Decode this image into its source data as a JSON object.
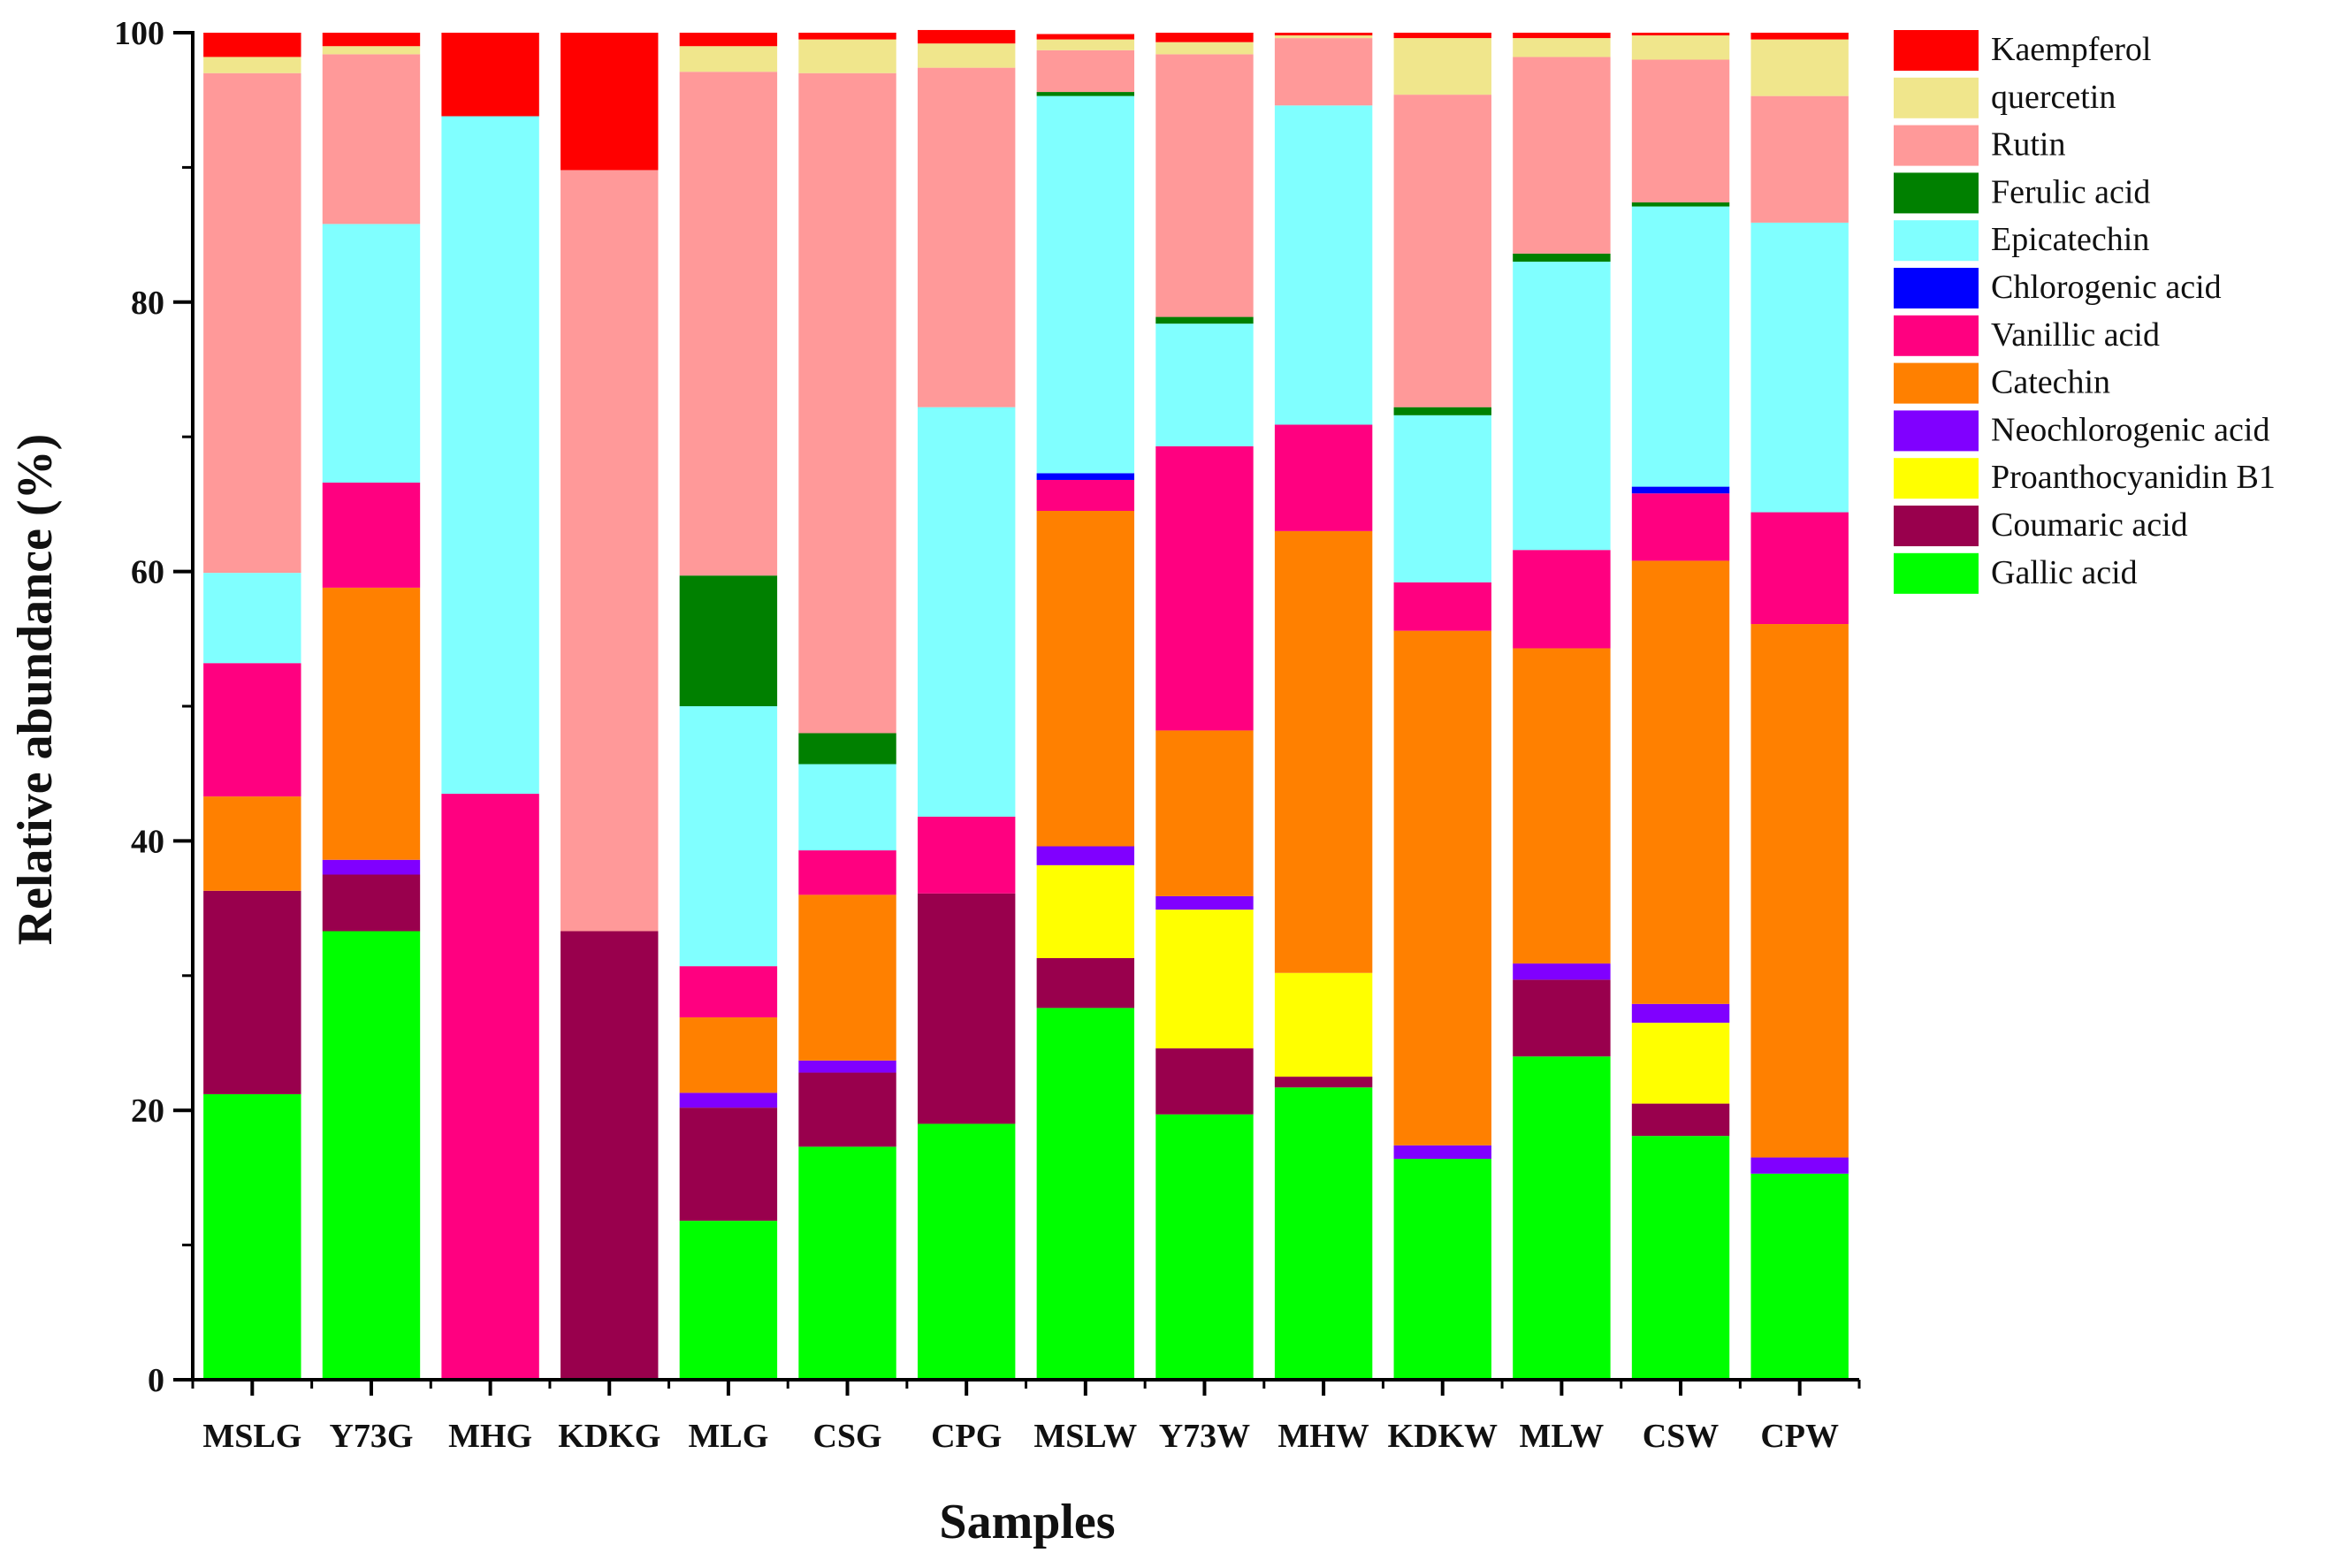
{
  "chart_data": {
    "type": "bar",
    "stacked": true,
    "title": "",
    "xlabel": "Samples",
    "ylabel": "Relative abundance (%)",
    "ylim": [
      0,
      100
    ],
    "yticks": [
      0,
      20,
      40,
      60,
      80,
      100
    ],
    "grid": false,
    "legend_position": "right",
    "categories": [
      "MSLG",
      "Y73G",
      "MHG",
      "KDKG",
      "MLG",
      "CSG",
      "CPG",
      "MSLW",
      "Y73W",
      "MHW",
      "KDKW",
      "MLW",
      "CSW",
      "CPW"
    ],
    "series": [
      {
        "name": "Gallic acid",
        "color": "#00ff00",
        "values": [
          21.2,
          33.3,
          0,
          0,
          11.8,
          17.3,
          19.0,
          27.6,
          19.7,
          21.7,
          16.4,
          24.0,
          18.1,
          15.3
        ]
      },
      {
        "name": "Coumaric acid",
        "color": "#99004d",
        "values": [
          15.1,
          4.2,
          0,
          33.3,
          8.4,
          5.5,
          17.1,
          3.7,
          4.9,
          0.8,
          0,
          5.7,
          2.4,
          0
        ]
      },
      {
        "name": "Proanthocyanidin B1",
        "color": "#ffff00",
        "values": [
          0,
          0,
          0,
          0,
          0,
          0,
          0,
          6.9,
          10.3,
          7.7,
          0,
          0,
          6.0,
          0
        ]
      },
      {
        "name": "Neochlorogenic acid",
        "color": "#8000ff",
        "values": [
          0,
          1.1,
          0,
          0,
          1.1,
          0.9,
          0,
          1.4,
          1.0,
          0,
          1.0,
          1.2,
          1.4,
          1.2
        ]
      },
      {
        "name": "Catechin",
        "color": "#ff8000",
        "values": [
          7.0,
          20.2,
          0,
          0,
          5.6,
          12.3,
          0,
          24.9,
          12.3,
          32.8,
          38.2,
          23.4,
          32.9,
          39.6
        ]
      },
      {
        "name": "Vanillic acid",
        "color": "#ff0080",
        "values": [
          9.9,
          7.8,
          43.5,
          0,
          3.8,
          3.3,
          5.7,
          2.3,
          21.1,
          7.9,
          3.6,
          7.3,
          5.0,
          8.3
        ]
      },
      {
        "name": "Chlorogenic acid",
        "color": "#0000ff",
        "values": [
          0,
          0,
          0,
          0,
          0,
          0,
          0,
          0.5,
          0,
          0,
          0,
          0,
          0.5,
          0
        ]
      },
      {
        "name": "Epicatechin",
        "color": "#80ffff",
        "values": [
          6.7,
          19.2,
          50.3,
          0,
          19.3,
          6.4,
          30.4,
          28.0,
          9.1,
          23.7,
          12.4,
          21.4,
          20.8,
          21.5
        ]
      },
      {
        "name": "Ferulic acid",
        "color": "#008000",
        "values": [
          0,
          0,
          0,
          0,
          9.7,
          2.3,
          0,
          0.3,
          0.5,
          0,
          0.6,
          0.6,
          0.3,
          0
        ]
      },
      {
        "name": "Rutin",
        "color": "#ff9999",
        "values": [
          37.1,
          12.6,
          0,
          56.5,
          37.4,
          49.0,
          25.2,
          3.1,
          19.5,
          5.0,
          23.2,
          14.6,
          10.6,
          9.4
        ]
      },
      {
        "name": "quercetin",
        "color": "#f0e68c",
        "values": [
          1.2,
          0.6,
          0,
          0,
          1.9,
          2.5,
          1.8,
          0.8,
          0.9,
          0.2,
          4.2,
          1.4,
          1.8,
          4.2
        ]
      },
      {
        "name": "Kaempferol",
        "color": "#ff0000",
        "values": [
          1.8,
          1.0,
          6.2,
          10.2,
          1.0,
          0.5,
          1.0,
          0.4,
          0.7,
          0.2,
          0.4,
          0.4,
          0.2,
          0.5
        ]
      }
    ]
  }
}
